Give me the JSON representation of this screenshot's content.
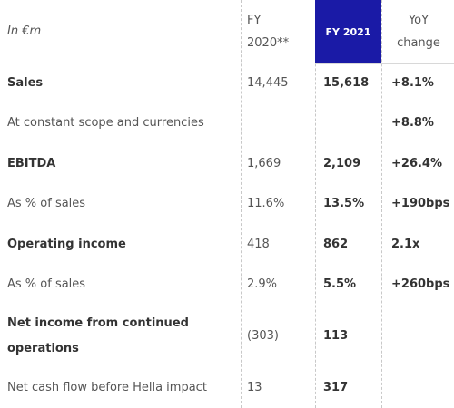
{
  "header": {
    "unit_label": "In €m",
    "fy2020_line1": "FY",
    "fy2020_line2": "2020**",
    "fy2021": "FY 2021",
    "yoy_line1": "YoY",
    "yoy_line2": "change"
  },
  "rows": [
    {
      "label": "Sales",
      "fy2020": "14,445",
      "fy2021": "15,618",
      "yoy": "+8.1%"
    },
    {
      "label": "At constant scope and currencies",
      "fy2020": "",
      "fy2021": "",
      "yoy": "+8.8%"
    },
    {
      "label": "EBITDA",
      "fy2020": "1,669",
      "fy2021": "2,109",
      "yoy": "+26.4%"
    },
    {
      "label": "As % of sales",
      "fy2020": "11.6%",
      "fy2021": "13.5%",
      "yoy": "+190bps"
    },
    {
      "label": "Operating income",
      "fy2020": "418",
      "fy2021": "862",
      "yoy": "2.1x"
    },
    {
      "label": "As % of sales",
      "fy2020": "2.9%",
      "fy2021": "5.5%",
      "yoy": "+260bps"
    },
    {
      "label_line1": "Net income from continued",
      "label_line2": "operations",
      "fy2020": "(303)",
      "fy2021": "113",
      "yoy": ""
    },
    {
      "label": "Net cash flow before Hella impact",
      "fy2020": "13",
      "fy2021": "317",
      "yoy": ""
    }
  ],
  "colors": {
    "highlight_header_bg": "#1a1aa6",
    "divider": "#c8c8c8"
  }
}
